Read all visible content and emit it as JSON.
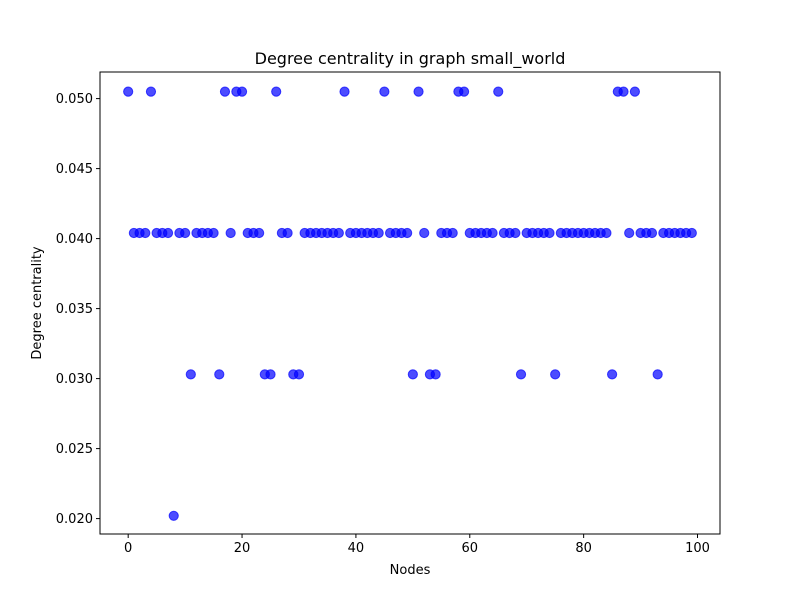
{
  "chart_data": {
    "type": "scatter",
    "title": "Degree centrality in graph small_world",
    "xlabel": "Nodes",
    "ylabel": "Degree centrality",
    "xlim": [
      -4.95,
      103.95
    ],
    "ylim": [
      0.0189,
      0.0519
    ],
    "xticks": [
      0,
      20,
      40,
      60,
      80,
      100
    ],
    "yticks": [
      0.02,
      0.025,
      0.03,
      0.035,
      0.04,
      0.045,
      0.05
    ],
    "xtick_labels": [
      "0",
      "20",
      "40",
      "60",
      "80",
      "100"
    ],
    "ytick_labels": [
      "0.020",
      "0.025",
      "0.030",
      "0.035",
      "0.040",
      "0.045",
      "0.050"
    ],
    "grid": false,
    "marker_color": "#0000ff",
    "marker_alpha": 0.7,
    "x": [
      0,
      1,
      2,
      3,
      4,
      5,
      6,
      7,
      8,
      9,
      10,
      11,
      12,
      13,
      14,
      15,
      16,
      17,
      18,
      19,
      20,
      21,
      22,
      23,
      24,
      25,
      26,
      27,
      28,
      29,
      30,
      31,
      32,
      33,
      34,
      35,
      36,
      37,
      38,
      39,
      40,
      41,
      42,
      43,
      44,
      45,
      46,
      47,
      48,
      49,
      50,
      51,
      52,
      53,
      54,
      55,
      56,
      57,
      58,
      59,
      60,
      61,
      62,
      63,
      64,
      65,
      66,
      67,
      68,
      69,
      70,
      71,
      72,
      73,
      74,
      75,
      76,
      77,
      78,
      79,
      80,
      81,
      82,
      83,
      84,
      85,
      86,
      87,
      88,
      89,
      90,
      91,
      92,
      93,
      94,
      95,
      96,
      97,
      98,
      99
    ],
    "y": [
      0.0505,
      0.0404,
      0.0404,
      0.0404,
      0.0505,
      0.0404,
      0.0404,
      0.0404,
      0.0202,
      0.0404,
      0.0404,
      0.0303,
      0.0404,
      0.0404,
      0.0404,
      0.0404,
      0.0303,
      0.0505,
      0.0404,
      0.0505,
      0.0505,
      0.0404,
      0.0404,
      0.0404,
      0.0303,
      0.0303,
      0.0505,
      0.0404,
      0.0404,
      0.0303,
      0.0303,
      0.0404,
      0.0404,
      0.0404,
      0.0404,
      0.0404,
      0.0404,
      0.0404,
      0.0505,
      0.0404,
      0.0404,
      0.0404,
      0.0404,
      0.0404,
      0.0404,
      0.0505,
      0.0404,
      0.0404,
      0.0404,
      0.0404,
      0.0303,
      0.0505,
      0.0404,
      0.0303,
      0.0303,
      0.0404,
      0.0404,
      0.0404,
      0.0505,
      0.0505,
      0.0404,
      0.0404,
      0.0404,
      0.0404,
      0.0404,
      0.0505,
      0.0404,
      0.0404,
      0.0404,
      0.0303,
      0.0404,
      0.0404,
      0.0404,
      0.0404,
      0.0404,
      0.0303,
      0.0404,
      0.0404,
      0.0404,
      0.0404,
      0.0404,
      0.0404,
      0.0404,
      0.0404,
      0.0404,
      0.0303,
      0.0505,
      0.0505,
      0.0404,
      0.0505,
      0.0404,
      0.0404,
      0.0404,
      0.0303,
      0.0404,
      0.0404,
      0.0404,
      0.0404,
      0.0404,
      0.0404
    ]
  }
}
